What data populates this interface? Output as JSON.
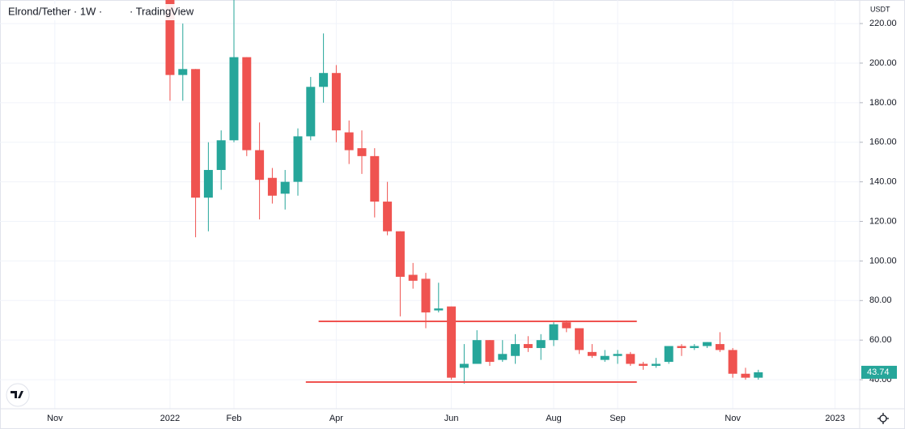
{
  "chart_data": {
    "type": "candlestick",
    "title": "Elrond/Tether · 1W ·",
    "source": "· TradingView",
    "currency": "USDT",
    "x": [
      null,
      null,
      null,
      "Nov",
      null,
      null,
      null,
      null,
      null,
      null,
      null,
      null,
      "2022",
      null,
      null,
      null,
      null,
      "Feb",
      null,
      null,
      null,
      null,
      null,
      null,
      null,
      "Apr",
      null,
      null,
      null,
      null,
      null,
      null,
      null,
      null,
      "Jun",
      null,
      null,
      null,
      null,
      null,
      null,
      null,
      "Aug",
      null,
      null,
      null,
      null,
      "Sep",
      null,
      null,
      null,
      null,
      null,
      null,
      null,
      null,
      "Nov",
      null,
      null,
      null,
      null,
      null,
      null,
      null,
      "2023",
      null
    ],
    "open": [
      null,
      null,
      null,
      null,
      null,
      null,
      null,
      null,
      null,
      null,
      null,
      null,
      235,
      194,
      197,
      132,
      146,
      161,
      203,
      156,
      142,
      134,
      140,
      163,
      188,
      195,
      165,
      157,
      153,
      130,
      115,
      93,
      91,
      75,
      77,
      46,
      48,
      60,
      50,
      52,
      58,
      56,
      60,
      69,
      66,
      54,
      50,
      52,
      53,
      48,
      47,
      49,
      57,
      56,
      57,
      58,
      55,
      43,
      41,
      null,
      null,
      null,
      null,
      null,
      null,
      null
    ],
    "high": [
      null,
      null,
      null,
      null,
      null,
      null,
      null,
      null,
      null,
      null,
      null,
      null,
      245,
      220,
      197,
      160,
      166,
      232,
      203,
      170,
      147,
      146,
      167,
      193,
      215,
      199,
      171,
      166,
      157,
      140,
      115,
      99,
      94,
      89,
      77,
      58,
      65,
      60,
      60,
      63,
      62,
      63,
      69,
      70,
      66,
      58,
      55,
      55,
      54,
      49,
      51,
      57,
      58,
      58,
      59,
      64,
      56,
      46,
      45,
      null,
      null,
      null,
      null,
      null,
      null,
      null
    ],
    "low": [
      null,
      null,
      null,
      null,
      null,
      null,
      null,
      null,
      null,
      null,
      null,
      null,
      181,
      181,
      112,
      115,
      136,
      160,
      153,
      121,
      129,
      126,
      133,
      161,
      180,
      160,
      149,
      144,
      122,
      113,
      72,
      86,
      66,
      74,
      40,
      38,
      48,
      47,
      49,
      48,
      54,
      50,
      57,
      64,
      53,
      51,
      49,
      48,
      47,
      45,
      46,
      48,
      52,
      55,
      56,
      54,
      41,
      40,
      40,
      null,
      null,
      null,
      null,
      null,
      null,
      null
    ],
    "close": [
      null,
      null,
      null,
      null,
      null,
      null,
      null,
      null,
      null,
      null,
      null,
      null,
      194,
      197,
      132,
      146,
      161,
      203,
      156,
      141,
      133,
      140,
      163,
      188,
      195,
      166,
      156,
      153,
      130,
      115,
      92,
      90,
      74,
      76,
      41,
      48,
      60,
      49,
      53,
      58,
      56,
      60,
      68,
      66,
      55,
      52,
      52,
      53,
      48,
      47,
      48,
      57,
      56,
      57,
      59,
      55,
      43,
      41,
      43.74,
      null,
      null,
      null,
      null,
      null,
      null,
      null
    ],
    "up_color": "#26a69a",
    "down_color": "#ef5350",
    "hlines": [
      {
        "value": 69.5,
        "color": "#ef5350"
      },
      {
        "value": 38.8,
        "color": "#ef5350"
      }
    ],
    "ylim": [
      25.3,
      231.9
    ],
    "yticks": [
      {
        "value": 40,
        "label": "40.00"
      },
      {
        "value": 60,
        "label": "60.00"
      },
      {
        "value": 80,
        "label": "80.00"
      },
      {
        "value": 100,
        "label": "100.00"
      },
      {
        "value": 120,
        "label": "120.00"
      },
      {
        "value": 140,
        "label": "140.00"
      },
      {
        "value": 160,
        "label": "160.00"
      },
      {
        "value": 180,
        "label": "180.00"
      },
      {
        "value": 200,
        "label": "200.00"
      },
      {
        "value": 220,
        "label": "220.00"
      }
    ],
    "grid": true
  }
}
